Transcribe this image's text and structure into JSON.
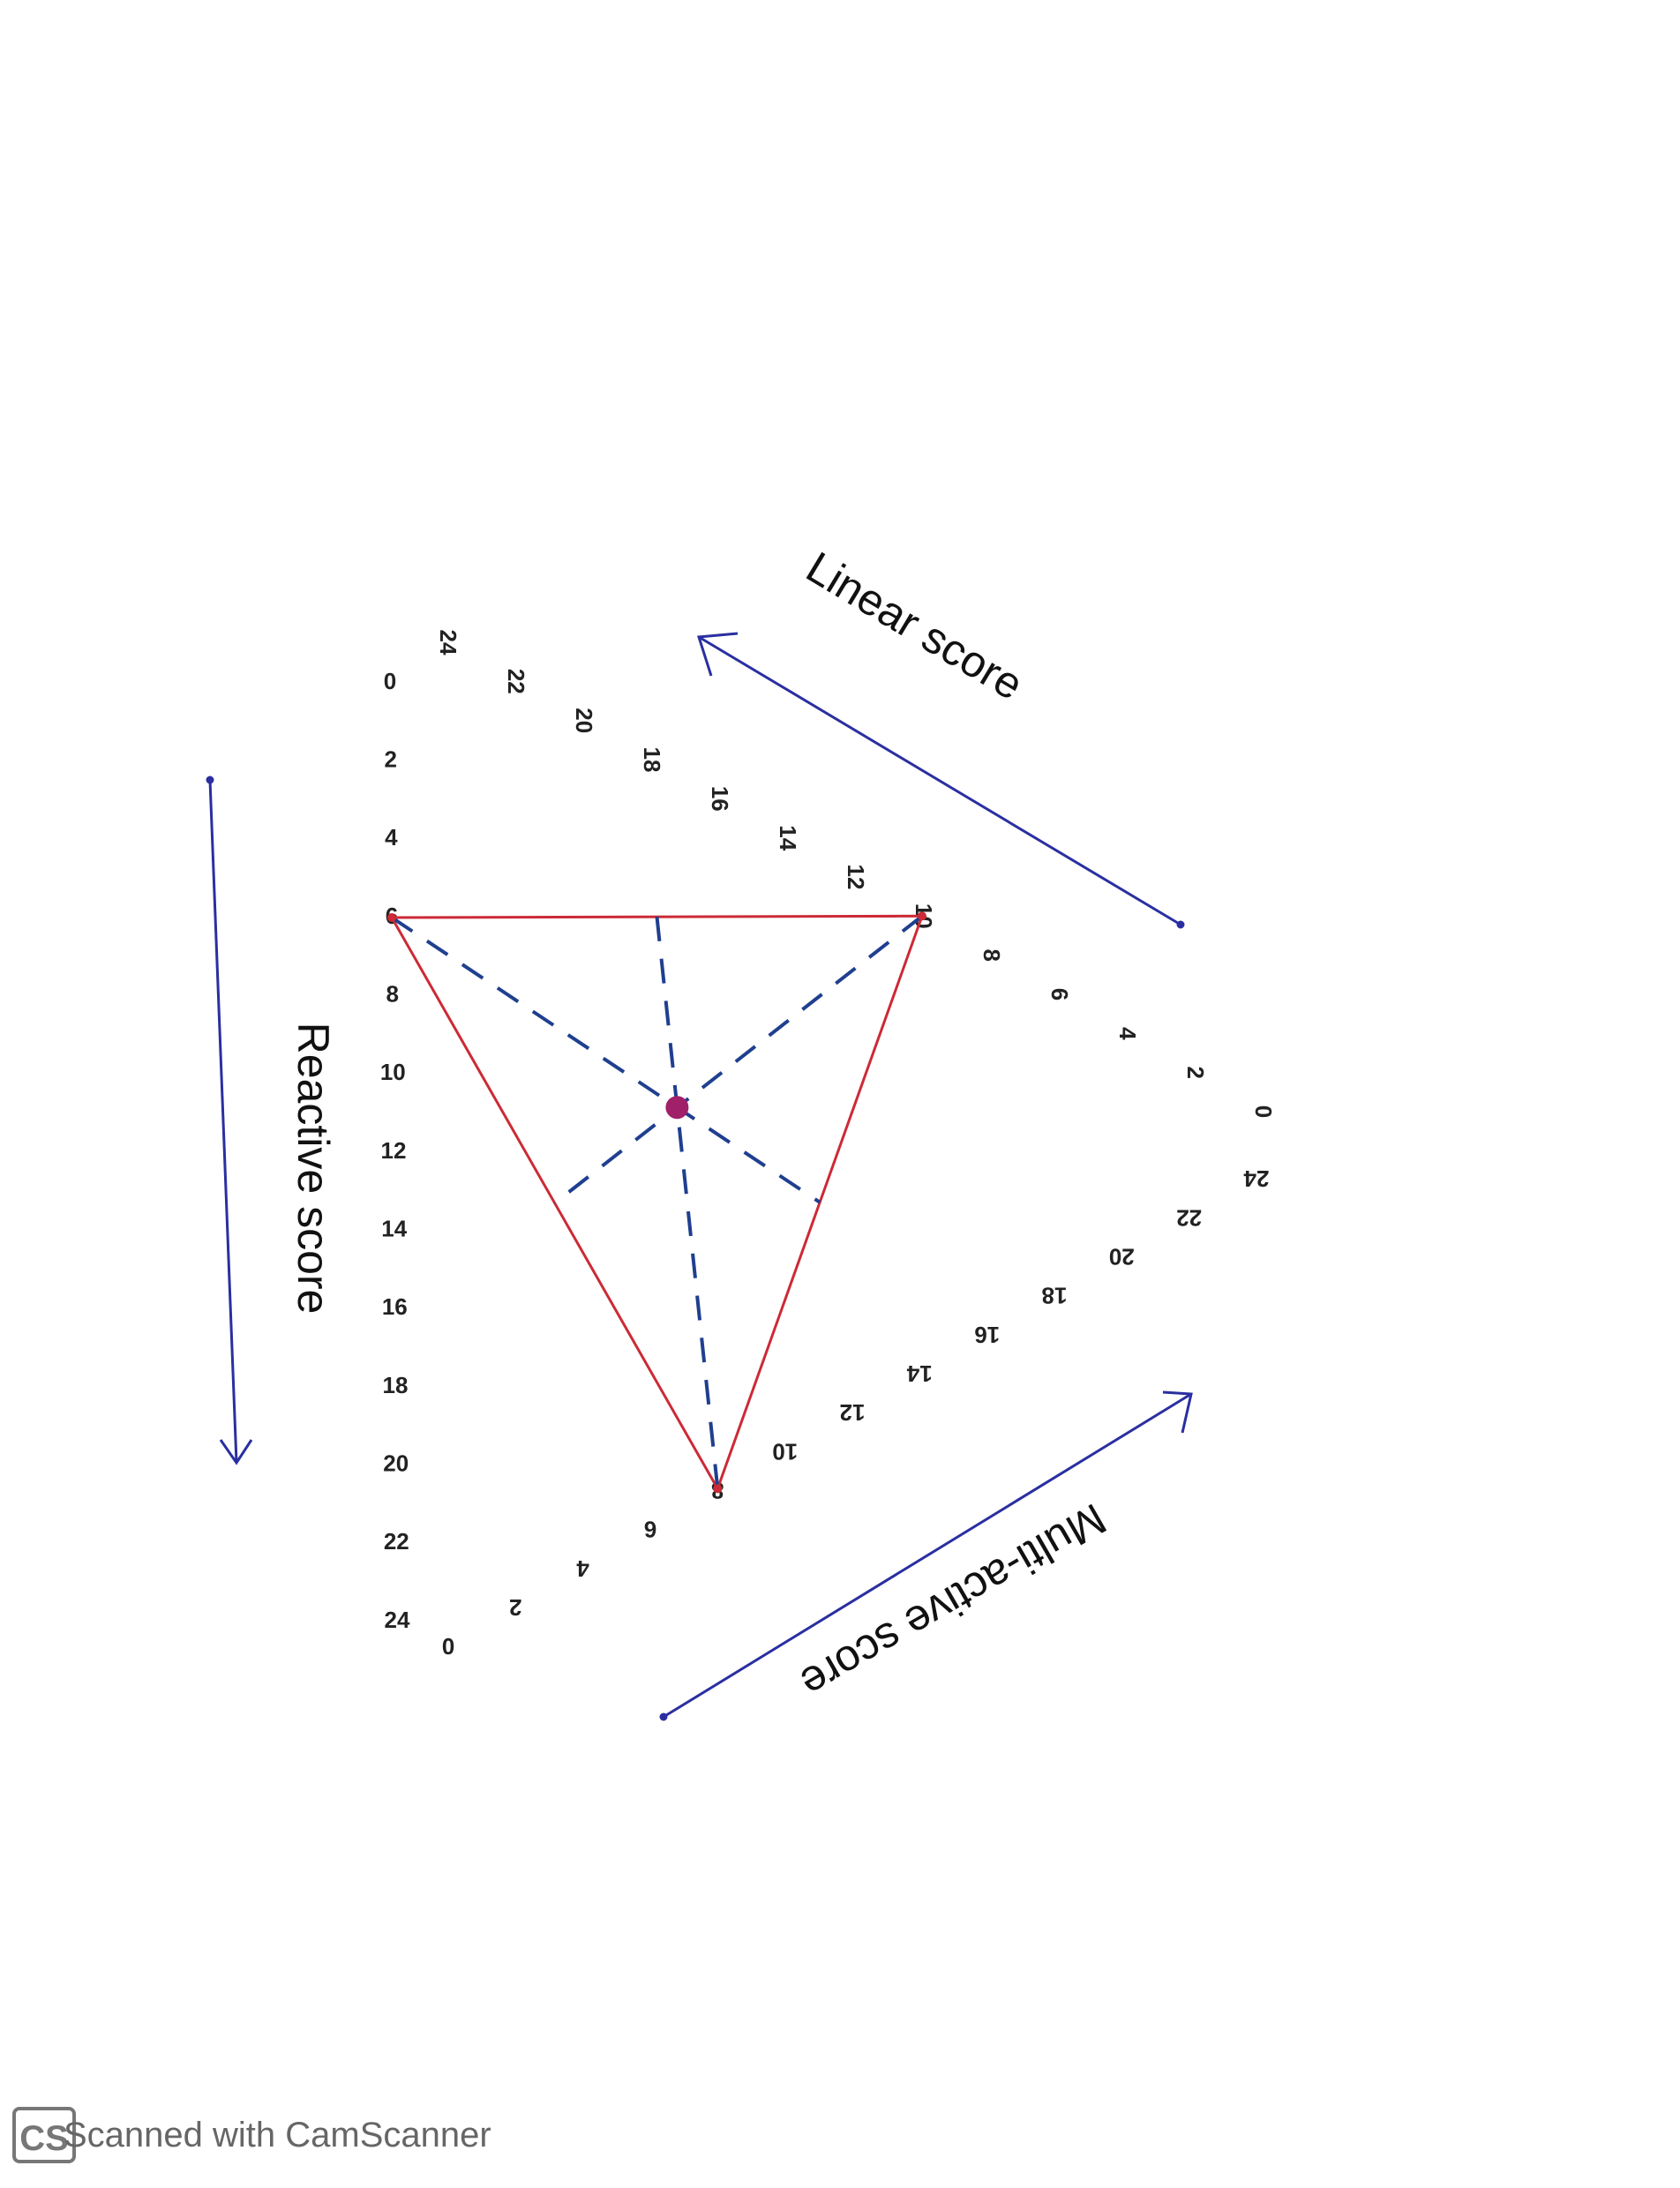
{
  "axes": {
    "linear": {
      "label": "Linear score",
      "tick_labels": [
        "24",
        "22",
        "20",
        "18",
        "16",
        "14",
        "12",
        "10",
        "8",
        "6",
        "4",
        "2",
        "0"
      ]
    },
    "reactive": {
      "label": "Reactive score",
      "tick_labels": [
        "0",
        "2",
        "4",
        "6",
        "8",
        "10",
        "12",
        "14",
        "16",
        "18",
        "20",
        "22",
        "24"
      ]
    },
    "multi_active": {
      "label": "Multi-active score",
      "tick_labels": [
        "0",
        "2",
        "4",
        "6",
        "8",
        "10",
        "12",
        "14",
        "16",
        "18",
        "20",
        "22",
        "24"
      ]
    }
  },
  "plotted_scores": {
    "reactive": 6,
    "linear": 10,
    "multi_active": 8
  },
  "colors": {
    "triangle": "#cc2a36",
    "medians": "#1f3f8f",
    "arrows": "#2a2fa0",
    "center_point": "#a0206a"
  },
  "watermark": {
    "logo": "CS",
    "text": "Scanned with CamScanner"
  }
}
